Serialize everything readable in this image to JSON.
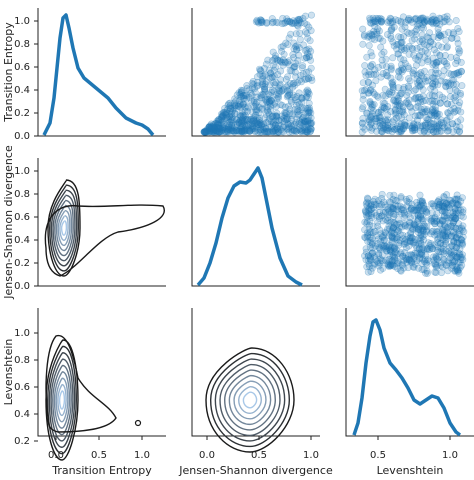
{
  "chart_data": {
    "type": "pairplot",
    "variables": [
      "Transition Entropy",
      "Jensen-Shannon divergence",
      "Levenshtein"
    ],
    "colors": {
      "main": "#1f77b4",
      "kde_dark": "#1a1a1a",
      "kde_light": "#a8c8e8"
    },
    "ticks": {
      "row_y": [
        [
          "0.0",
          "0.2",
          "0.4",
          "0.6",
          "0.8",
          "1.0"
        ],
        [
          "0.0",
          "0.2",
          "0.4",
          "0.6",
          "0.8",
          "1.0"
        ],
        [
          "0.2",
          "0.4",
          "0.6",
          "0.8",
          "1.0"
        ]
      ],
      "col_x": [
        [
          "0.0",
          "0.5",
          "1.0"
        ],
        [
          "0.0",
          "0.5",
          "1.0"
        ],
        [
          "0.5",
          "1.0"
        ]
      ]
    },
    "diagonal_kde": [
      {
        "variable": "Transition Entropy",
        "x": [
          -0.05,
          0.0,
          0.03,
          0.06,
          0.1,
          0.15,
          0.2,
          0.25,
          0.3,
          0.35,
          0.4,
          0.5,
          0.6,
          0.7,
          0.8,
          0.9,
          0.95,
          1.0,
          1.05
        ],
        "density": [
          0.2,
          0.8,
          1.6,
          2.0,
          1.5,
          0.9,
          0.62,
          0.55,
          0.45,
          0.4,
          0.33,
          0.28,
          0.2,
          0.15,
          0.1,
          0.09,
          0.05,
          0.02,
          0.0
        ]
      },
      {
        "variable": "Jensen-Shannon divergence",
        "x": [
          -0.05,
          0.05,
          0.15,
          0.25,
          0.3,
          0.35,
          0.4,
          0.45,
          0.5,
          0.55,
          0.6,
          0.7,
          0.8,
          0.9
        ],
        "density": [
          0.02,
          0.15,
          0.5,
          1.2,
          1.55,
          1.82,
          1.85,
          1.83,
          2.0,
          1.7,
          1.2,
          0.5,
          0.15,
          0.03
        ]
      },
      {
        "variable": "Levenshtein",
        "x": [
          0.2,
          0.25,
          0.3,
          0.35,
          0.4,
          0.45,
          0.5,
          0.55,
          0.6,
          0.65,
          0.7,
          0.75,
          0.8,
          0.85,
          0.9,
          0.95,
          1.0,
          1.03
        ],
        "density": [
          0.05,
          0.3,
          1.2,
          2.18,
          1.9,
          1.35,
          1.05,
          0.95,
          0.8,
          0.65,
          0.55,
          0.55,
          0.62,
          0.55,
          0.35,
          0.15,
          0.05,
          0.0
        ]
      }
    ],
    "scatter": [
      {
        "row": 0,
        "col": 1,
        "x_var": "Jensen-Shannon divergence",
        "y_var": "Transition Entropy",
        "pattern": "fan",
        "n_points": 700
      },
      {
        "row": 0,
        "col": 2,
        "x_var": "Levenshtein",
        "y_var": "Transition Entropy",
        "pattern": "vertical_bands",
        "n_points": 600
      },
      {
        "row": 1,
        "col": 2,
        "x_var": "Levenshtein",
        "y_var": "Jensen-Shannon divergence",
        "pattern": "block",
        "n_points": 700
      }
    ],
    "kde_contours": [
      {
        "row": 1,
        "col": 0,
        "x_var": "Transition Entropy",
        "y_var": "Jensen-Shannon divergence",
        "peak": [
          0.05,
          0.4
        ],
        "levels": 9
      },
      {
        "row": 2,
        "col": 0,
        "x_var": "Transition Entropy",
        "y_var": "Levenshtein",
        "peak": [
          0.05,
          0.35
        ],
        "levels": 9
      },
      {
        "row": 2,
        "col": 1,
        "x_var": "Jensen-Shannon divergence",
        "y_var": "Levenshtein",
        "peak": [
          0.4,
          0.4
        ],
        "levels": 9
      }
    ]
  }
}
